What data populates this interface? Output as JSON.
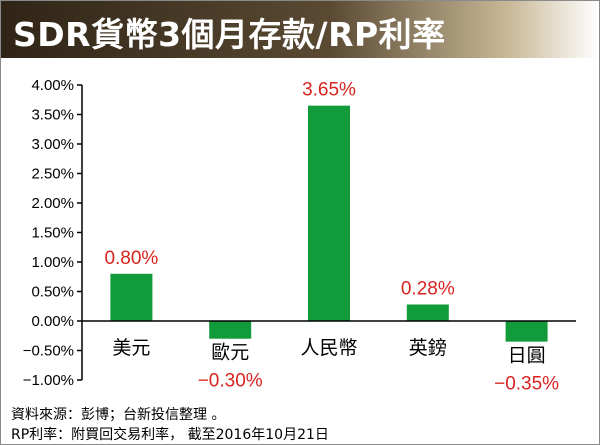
{
  "header": {
    "title": "SDR貨幣3個月存款/RP利率"
  },
  "chart_data": {
    "type": "bar",
    "title": "SDR貨幣3個月存款/RP利率",
    "categories": [
      "美元",
      "歐元",
      "人民幣",
      "英鎊",
      "日圓"
    ],
    "values": [
      0.8,
      -0.3,
      3.65,
      0.28,
      -0.35
    ],
    "value_labels": [
      "0.80%",
      "−0.30%",
      "3.65%",
      "0.28%",
      "−0.35%"
    ],
    "y_ticks": [
      -1.0,
      -0.5,
      0.0,
      0.5,
      1.0,
      1.5,
      2.0,
      2.5,
      3.0,
      3.5,
      4.0
    ],
    "y_tick_labels": [
      "−1.00%",
      "−0.50%",
      "0.00%",
      "0.50%",
      "1.00%",
      "1.50%",
      "2.00%",
      "2.50%",
      "3.00%",
      "3.50%",
      "4.00%"
    ],
    "ylim": [
      -1.0,
      4.0
    ],
    "xlabel": "",
    "ylabel": "",
    "grid": false,
    "legend": false,
    "bar_color": "#119b3a",
    "label_color": "#d8231f"
  },
  "notes": {
    "source": "資料來源：彭博；台新投信整理 。",
    "rp_note": "RP利率：附買回交易利率， 截至2016年10月21日"
  }
}
